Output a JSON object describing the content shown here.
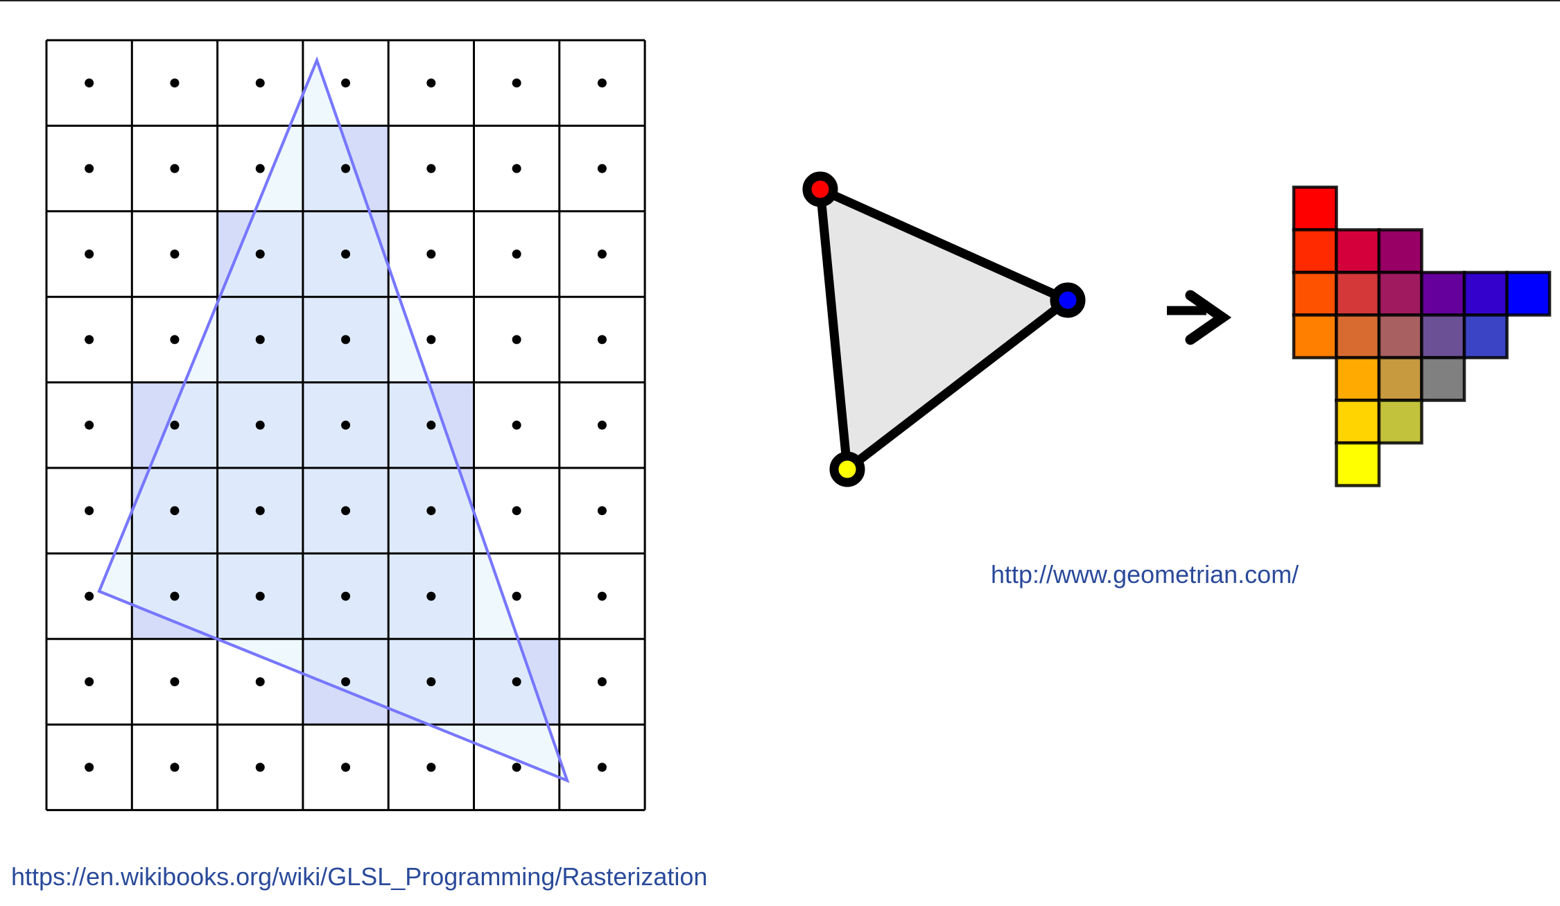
{
  "links": {
    "wikibooks": "https://en.wikibooks.org/wiki/GLSL_Programming/Rasterization",
    "geometrian": "http://www.geometrian.com/"
  },
  "grid": {
    "columns": 7,
    "rows": 9,
    "covered_cells": [
      [
        3,
        1
      ],
      [
        2,
        2
      ],
      [
        3,
        2
      ],
      [
        2,
        3
      ],
      [
        3,
        3
      ],
      [
        1,
        4
      ],
      [
        2,
        4
      ],
      [
        3,
        4
      ],
      [
        4,
        4
      ],
      [
        1,
        5
      ],
      [
        2,
        5
      ],
      [
        3,
        5
      ],
      [
        4,
        5
      ],
      [
        1,
        6
      ],
      [
        2,
        6
      ],
      [
        3,
        6
      ],
      [
        4,
        6
      ],
      [
        3,
        7
      ],
      [
        4,
        7
      ],
      [
        5,
        7
      ]
    ],
    "colors": {
      "triangle_fill": "#e4f3fb",
      "triangle_stroke": "#7777ff",
      "covered_cell": "#d4dcfa"
    }
  },
  "vertex_triangle": {
    "vertex_colors": [
      "#ff0000",
      "#0000ff",
      "#ffff00"
    ],
    "fill": "#e6e6e6",
    "icon": "arrow-right-icon"
  },
  "raster_pixels": [
    {
      "row": 0,
      "col": 0,
      "color": "#ff0000"
    },
    {
      "row": 1,
      "col": 0,
      "color": "#ff2a00"
    },
    {
      "row": 1,
      "col": 1,
      "color": "#d4003c"
    },
    {
      "row": 1,
      "col": 2,
      "color": "#990066"
    },
    {
      "row": 2,
      "col": 0,
      "color": "#ff5200"
    },
    {
      "row": 2,
      "col": 1,
      "color": "#d43838"
    },
    {
      "row": 2,
      "col": 2,
      "color": "#a01a60"
    },
    {
      "row": 2,
      "col": 3,
      "color": "#66009c"
    },
    {
      "row": 2,
      "col": 4,
      "color": "#3300cc"
    },
    {
      "row": 2,
      "col": 5,
      "color": "#0000ff"
    },
    {
      "row": 3,
      "col": 0,
      "color": "#ff7f00"
    },
    {
      "row": 3,
      "col": 1,
      "color": "#d86c30"
    },
    {
      "row": 3,
      "col": 2,
      "color": "#a86060"
    },
    {
      "row": 3,
      "col": 3,
      "color": "#6c5096"
    },
    {
      "row": 3,
      "col": 4,
      "color": "#3a44c4"
    },
    {
      "row": 4,
      "col": 1,
      "color": "#ffaa00"
    },
    {
      "row": 4,
      "col": 2,
      "color": "#c89a40"
    },
    {
      "row": 4,
      "col": 3,
      "color": "#808080"
    },
    {
      "row": 5,
      "col": 1,
      "color": "#ffd400"
    },
    {
      "row": 5,
      "col": 2,
      "color": "#c2c23c"
    },
    {
      "row": 6,
      "col": 1,
      "color": "#ffff00"
    }
  ]
}
